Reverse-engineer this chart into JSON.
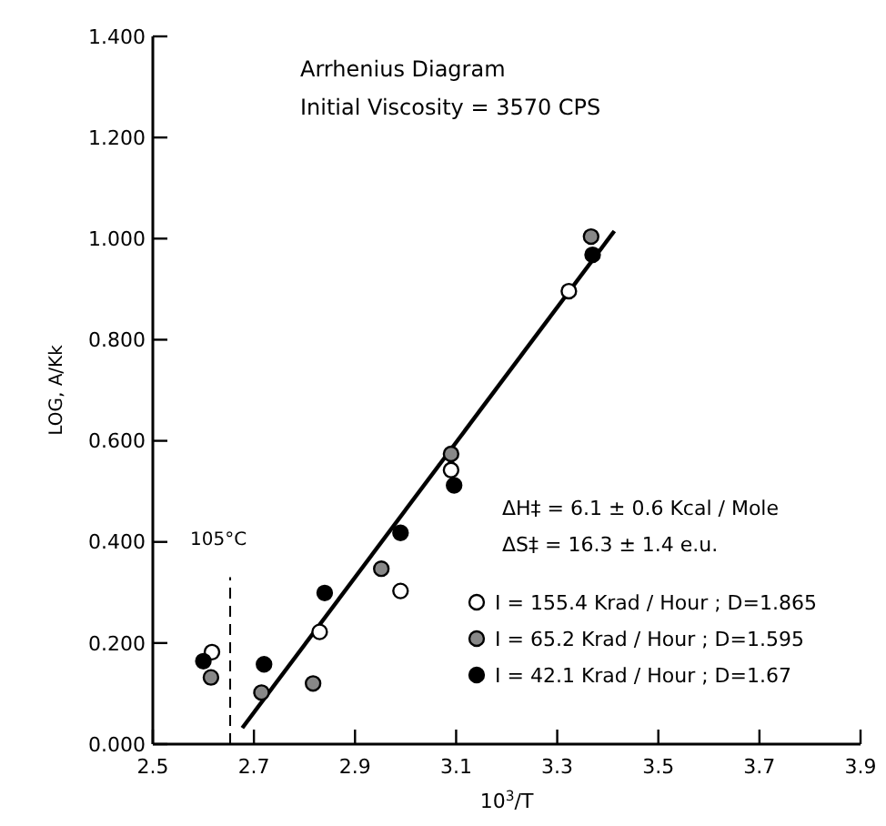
{
  "chart_data": {
    "type": "scatter",
    "title": "Arrhenius Diagram",
    "subtitle": "Initial Viscosity = 3570 CPS",
    "xlabel": "10$^{3}$/T",
    "ylabel": "LOG, A/Kk",
    "xlim": [
      2.5,
      3.9
    ],
    "xticks": [
      2.5,
      2.7,
      2.9,
      3.1,
      3.3,
      3.5,
      3.7,
      3.9
    ],
    "ylim": [
      0,
      1.4
    ],
    "yticks": [
      {
        "value": 0,
        "label": "0.000"
      },
      {
        "value": 0.2,
        "label": "0.200"
      },
      {
        "value": 0.4,
        "label": "0.400"
      },
      {
        "value": 0.6,
        "label": "0.600"
      },
      {
        "value": 0.8,
        "label": "0.800"
      },
      {
        "value": 1.0,
        "label": "1.000"
      },
      {
        "value": 1.2,
        "label": "1.200"
      },
      {
        "value": 1.4,
        "label": "1.400"
      }
    ],
    "grid": false,
    "legend": "bottom right",
    "marker": "circle",
    "series": [
      {
        "name": "I = 155.4 Krad / Hour ; D=1.865",
        "color": "#ffffff",
        "x": [
          2.617,
          2.83,
          2.99,
          3.09,
          3.323
        ],
        "values": [
          0.182,
          0.222,
          0.303,
          0.542,
          0.896
        ]
      },
      {
        "name": "I = 65.2 Krad / Hour ; D=1.595",
        "color": "#888888",
        "x": [
          2.615,
          2.715,
          2.817,
          2.952,
          3.09,
          3.367
        ],
        "values": [
          0.132,
          0.102,
          0.12,
          0.347,
          0.574,
          1.004
        ]
      },
      {
        "name": "I = 42.1 Krad / Hour ; D=1.67",
        "color": "#000000",
        "x": [
          2.6,
          2.72,
          2.84,
          2.99,
          3.096,
          3.37
        ],
        "values": [
          0.164,
          0.158,
          0.299,
          0.418,
          0.512,
          0.968
        ]
      },
      {
        "type": "line",
        "marker": "none",
        "color": "#000000",
        "x": [
          2.677,
          3.413
        ],
        "values": [
          0.032,
          1.015
        ]
      }
    ],
    "ref_lines": [
      {
        "axis": "x",
        "value": 2.653,
        "label": "105°C",
        "line_style": "dashed"
      }
    ],
    "annotations": [
      "ΔH‡ = 6.1 ± 0.6 Kcal / Mole",
      "ΔS‡ = 16.3 ± 1.4 e.u."
    ]
  }
}
